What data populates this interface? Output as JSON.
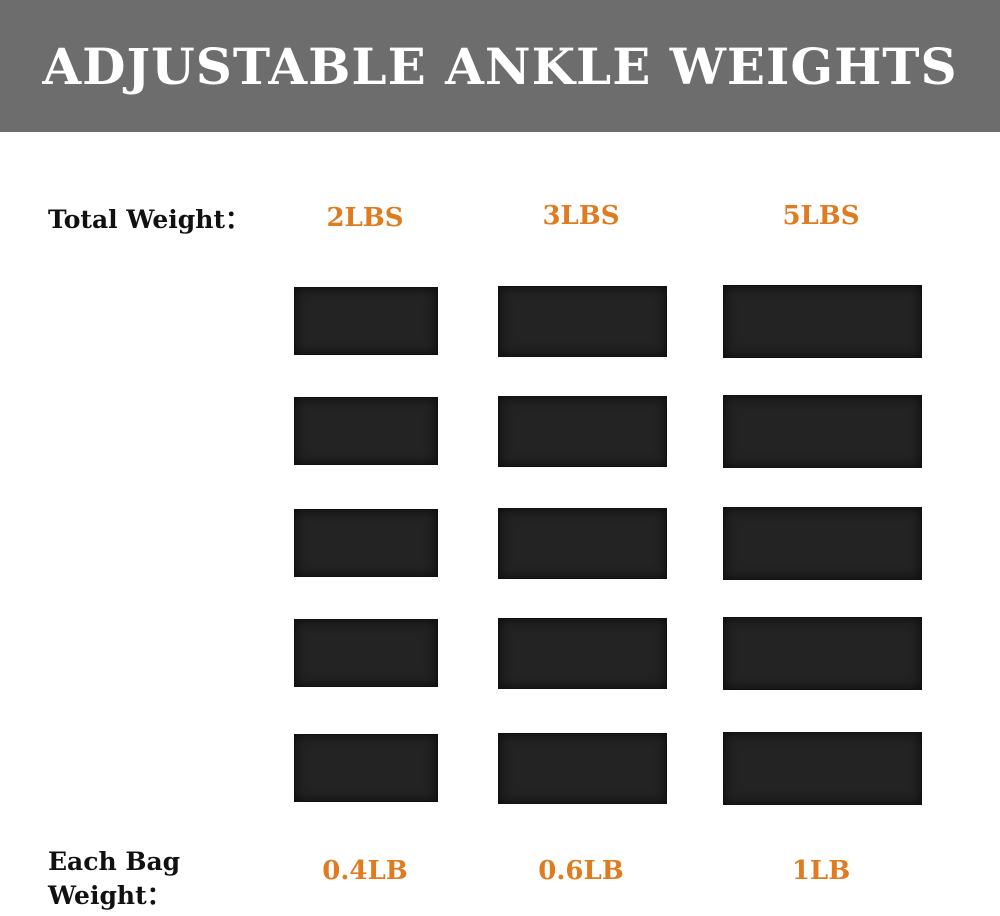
{
  "title": "ADJUSTABLE ANKLE WEIGHTS",
  "total_weight_label": "Total Weight：",
  "each_bag_label_line1": "Each Bag",
  "each_bag_label_line2": "Weight：",
  "columns": [
    {
      "total": "2LBS",
      "per_bag": "0.4LB",
      "bag_count": 5
    },
    {
      "total": "3LBS",
      "per_bag": "0.6LB",
      "bag_count": 5
    },
    {
      "total": "5LBS",
      "per_bag": "1LB",
      "bag_count": 5
    }
  ],
  "colors": {
    "header": "#6d6d6d",
    "accent": "#e07b20",
    "bag": "#232323"
  }
}
